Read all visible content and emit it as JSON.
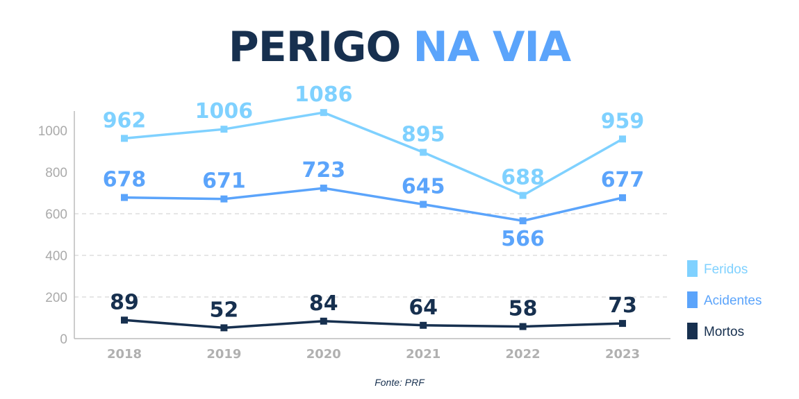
{
  "chart_data": {
    "type": "line",
    "title": [
      "PERIGO",
      "NA VIA"
    ],
    "title_colors": [
      "#17304f",
      "#5ba4fb"
    ],
    "categories": [
      "2018",
      "2019",
      "2020",
      "2021",
      "2022",
      "2023"
    ],
    "ylim": [
      0,
      1100
    ],
    "yticks": [
      0,
      200,
      400,
      600,
      800,
      1000
    ],
    "grid": "dashed horizontal at 200, 400, 600",
    "legend_placement": "right",
    "series": [
      {
        "name": "Feridos",
        "color": "#7fd1ff",
        "values": [
          962,
          1006,
          1086,
          895,
          688,
          959
        ]
      },
      {
        "name": "Acidentes",
        "color": "#5ba4fb",
        "values": [
          678,
          671,
          723,
          645,
          566,
          677
        ]
      },
      {
        "name": "Mortos",
        "color": "#17304f",
        "values": [
          89,
          52,
          84,
          64,
          58,
          73
        ]
      }
    ],
    "source": "Fonte: PRF"
  }
}
